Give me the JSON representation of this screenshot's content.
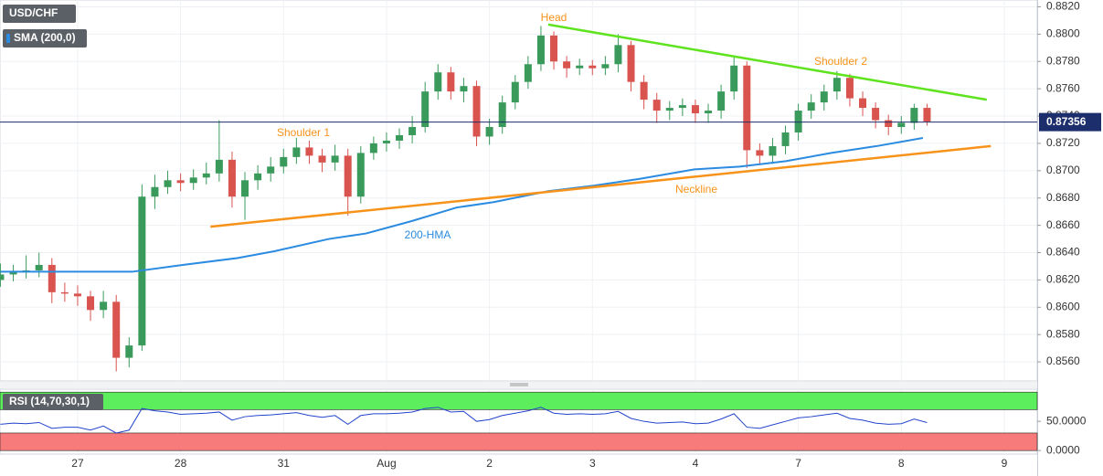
{
  "chart_data": [
    {
      "type": "candlestick",
      "title": "USD/CHF",
      "indicator_label": "SMA (200,0)",
      "up_color": "#3a9a5b",
      "down_color": "#d9534f",
      "xlim": [
        -0.754,
        9.32
      ],
      "ylim": [
        0.8546,
        0.8825
      ],
      "xticks": [
        {
          "value": 0,
          "label": "27"
        },
        {
          "value": 1,
          "label": "28"
        },
        {
          "value": 2,
          "label": "31"
        },
        {
          "value": 3,
          "label": "Aug"
        },
        {
          "value": 4,
          "label": "2"
        },
        {
          "value": 5,
          "label": "3"
        },
        {
          "value": 6,
          "label": "4"
        },
        {
          "value": 7,
          "label": "7"
        },
        {
          "value": 8,
          "label": "8"
        },
        {
          "value": 9,
          "label": "9"
        }
      ],
      "yticks": [
        {
          "value": 0.856,
          "label": "0.8560"
        },
        {
          "value": 0.858,
          "label": "0.8580"
        },
        {
          "value": 0.86,
          "label": "0.8600"
        },
        {
          "value": 0.862,
          "label": "0.8620"
        },
        {
          "value": 0.864,
          "label": "0.8640"
        },
        {
          "value": 0.866,
          "label": "0.8660"
        },
        {
          "value": 0.868,
          "label": "0.8680"
        },
        {
          "value": 0.87,
          "label": "0.8700"
        },
        {
          "value": 0.872,
          "label": "0.8720"
        },
        {
          "value": 0.874,
          "label": "0.8740"
        },
        {
          "value": 0.876,
          "label": "0.8760"
        },
        {
          "value": 0.878,
          "label": "0.8780"
        },
        {
          "value": 0.88,
          "label": "0.8800"
        },
        {
          "value": 0.882,
          "label": "0.8820"
        }
      ],
      "grid": true,
      "x": [
        -0.75,
        -0.625,
        -0.5,
        -0.375,
        -0.25,
        -0.125,
        0,
        0.125,
        0.25,
        0.375,
        0.5,
        0.625,
        0.75,
        0.875,
        1,
        1.125,
        1.25,
        1.375,
        1.5,
        1.625,
        1.75,
        1.875,
        2,
        2.125,
        2.25,
        2.375,
        2.5,
        2.625,
        2.75,
        2.875,
        3,
        3.125,
        3.25,
        3.375,
        3.5,
        3.625,
        3.75,
        3.875,
        4,
        4.125,
        4.25,
        4.375,
        4.5,
        4.625,
        4.75,
        4.875,
        5,
        5.125,
        5.25,
        5.375,
        5.5,
        5.625,
        5.75,
        5.875,
        6,
        6.125,
        6.25,
        6.375,
        6.5,
        6.625,
        6.75,
        6.875,
        7,
        7.125,
        7.25,
        7.375,
        7.5,
        7.625,
        7.75,
        7.875,
        8,
        8.125,
        8.25
      ],
      "open": [
        0.862,
        0.8624,
        0.8626,
        0.8627,
        0.8631,
        0.8611,
        0.861,
        0.8608,
        0.8598,
        0.8604,
        0.8563,
        0.8572,
        0.8681,
        0.8688,
        0.8693,
        0.8691,
        0.8695,
        0.8698,
        0.8708,
        0.8681,
        0.8693,
        0.8698,
        0.8703,
        0.871,
        0.8717,
        0.8711,
        0.8706,
        0.8711,
        0.8681,
        0.8713,
        0.872,
        0.8722,
        0.8726,
        0.8732,
        0.8758,
        0.8772,
        0.8758,
        0.8762,
        0.8725,
        0.8732,
        0.875,
        0.8765,
        0.8778,
        0.8799,
        0.878,
        0.8775,
        0.8777,
        0.8775,
        0.8778,
        0.8792,
        0.8765,
        0.8752,
        0.8744,
        0.8746,
        0.8748,
        0.8742,
        0.8744,
        0.8758,
        0.8777,
        0.8715,
        0.8711,
        0.8718,
        0.8728,
        0.8744,
        0.875,
        0.8758,
        0.8768,
        0.8753,
        0.8746,
        0.8737,
        0.8732,
        0.8735,
        0.8746
      ],
      "high": [
        0.8632,
        0.8631,
        0.8638,
        0.864,
        0.8636,
        0.8618,
        0.8616,
        0.8612,
        0.8612,
        0.8609,
        0.8578,
        0.869,
        0.8697,
        0.87,
        0.8698,
        0.8701,
        0.8706,
        0.8737,
        0.8714,
        0.8699,
        0.8704,
        0.871,
        0.8716,
        0.8724,
        0.8722,
        0.8716,
        0.8719,
        0.8716,
        0.8718,
        0.8725,
        0.8728,
        0.8731,
        0.874,
        0.8765,
        0.8778,
        0.8776,
        0.8768,
        0.8766,
        0.8738,
        0.8755,
        0.877,
        0.8784,
        0.8806,
        0.8802,
        0.8784,
        0.8782,
        0.8781,
        0.8784,
        0.88,
        0.8795,
        0.877,
        0.8757,
        0.8751,
        0.8753,
        0.8752,
        0.8749,
        0.8763,
        0.8783,
        0.878,
        0.872,
        0.8724,
        0.8733,
        0.8749,
        0.8756,
        0.8763,
        0.8773,
        0.8771,
        0.8758,
        0.875,
        0.8741,
        0.874,
        0.8749,
        0.8749
      ],
      "low": [
        0.8615,
        0.8619,
        0.8621,
        0.8622,
        0.8603,
        0.8604,
        0.8601,
        0.859,
        0.8592,
        0.8553,
        0.8556,
        0.8568,
        0.8672,
        0.8683,
        0.8685,
        0.8686,
        0.869,
        0.8692,
        0.8673,
        0.8664,
        0.8686,
        0.8692,
        0.8698,
        0.8705,
        0.8705,
        0.8699,
        0.87,
        0.8667,
        0.8676,
        0.8708,
        0.8714,
        0.8716,
        0.872,
        0.8728,
        0.8752,
        0.8752,
        0.875,
        0.8718,
        0.8719,
        0.8727,
        0.8745,
        0.876,
        0.8773,
        0.8774,
        0.8768,
        0.877,
        0.877,
        0.877,
        0.8772,
        0.8758,
        0.8745,
        0.8735,
        0.8737,
        0.874,
        0.8735,
        0.8735,
        0.8738,
        0.8752,
        0.8702,
        0.8704,
        0.8705,
        0.8712,
        0.8722,
        0.8738,
        0.8744,
        0.8752,
        0.8747,
        0.874,
        0.8731,
        0.8726,
        0.8727,
        0.873,
        0.8733
      ],
      "close": [
        0.8624,
        0.8626,
        0.8627,
        0.8631,
        0.8611,
        0.861,
        0.8608,
        0.8598,
        0.8604,
        0.8563,
        0.8572,
        0.8681,
        0.8688,
        0.8693,
        0.8691,
        0.8695,
        0.8698,
        0.8708,
        0.8681,
        0.8693,
        0.8698,
        0.8703,
        0.871,
        0.8717,
        0.8711,
        0.8706,
        0.8711,
        0.8681,
        0.8713,
        0.872,
        0.8722,
        0.8726,
        0.8732,
        0.8758,
        0.8772,
        0.8758,
        0.8762,
        0.8725,
        0.8732,
        0.875,
        0.8765,
        0.8778,
        0.8799,
        0.878,
        0.8775,
        0.8777,
        0.8775,
        0.8778,
        0.8792,
        0.8765,
        0.8752,
        0.8744,
        0.8746,
        0.8748,
        0.8742,
        0.8744,
        0.8758,
        0.8777,
        0.8715,
        0.8711,
        0.8718,
        0.8728,
        0.8744,
        0.875,
        0.8758,
        0.8768,
        0.8753,
        0.8746,
        0.8737,
        0.8732,
        0.8735,
        0.8746,
        0.8736
      ],
      "hma": {
        "color": "#2b8be0",
        "x": [
          -0.75,
          -0.22,
          0.31,
          0.53,
          1.02,
          1.55,
          1.91,
          2.44,
          2.8,
          3.24,
          3.68,
          4.04,
          4.57,
          5.01,
          5.46,
          5.99,
          6.43,
          6.88,
          7.32,
          7.76,
          8.21
        ],
        "values": [
          0.8626,
          0.8626,
          0.8626,
          0.8626,
          0.8631,
          0.8636,
          0.8641,
          0.865,
          0.8654,
          0.8663,
          0.8673,
          0.8677,
          0.8685,
          0.8689,
          0.8694,
          0.8701,
          0.8703,
          0.8707,
          0.8713,
          0.8718,
          0.8724
        ]
      },
      "trendlines": [
        {
          "color": "#5fe31f",
          "x": [
            4.57,
            8.83
          ],
          "values": [
            0.8807,
            0.8752
          ]
        },
        {
          "color": "#f7931a",
          "x": [
            1.29,
            8.87
          ],
          "values": [
            0.8659,
            0.8718
          ]
        }
      ],
      "annotations": [
        {
          "text": "Head",
          "color": "#f7931a"
        },
        {
          "text": "Shoulder 1",
          "color": "#f7931a"
        },
        {
          "text": "Shoulder 2",
          "color": "#f7931a"
        },
        {
          "text": "Neckline",
          "color": "#f7931a"
        },
        {
          "text": "200-HMA",
          "color": "#2b8be0"
        }
      ],
      "last_price": {
        "value": 0.87356,
        "label": "0.87356",
        "color": "#1c2e6b"
      }
    },
    {
      "type": "line",
      "title": "RSI (14,70,30,1)",
      "color": "#2244cc",
      "ylim": [
        -6,
        105
      ],
      "yticks": [
        {
          "value": 50,
          "label": "50.0000"
        },
        {
          "value": 0,
          "label": "0.0000"
        }
      ],
      "bands": [
        {
          "from": 70,
          "to": 100,
          "color": "#5cee5c"
        },
        {
          "from": 0,
          "to": 30,
          "color": "#f77b7b"
        }
      ],
      "values": [
        45,
        47,
        46,
        48,
        38,
        40,
        40,
        35,
        42,
        30,
        35,
        72,
        68,
        66,
        62,
        63,
        64,
        66,
        52,
        58,
        60,
        61,
        63,
        65,
        60,
        57,
        60,
        45,
        60,
        63,
        63,
        64,
        66,
        72,
        74,
        66,
        67,
        50,
        53,
        60,
        64,
        68,
        74,
        64,
        62,
        63,
        62,
        63,
        67,
        55,
        50,
        47,
        48,
        49,
        46,
        47,
        54,
        63,
        40,
        38,
        44,
        50,
        56,
        58,
        61,
        64,
        55,
        52,
        47,
        45,
        46,
        54,
        48
      ]
    }
  ]
}
